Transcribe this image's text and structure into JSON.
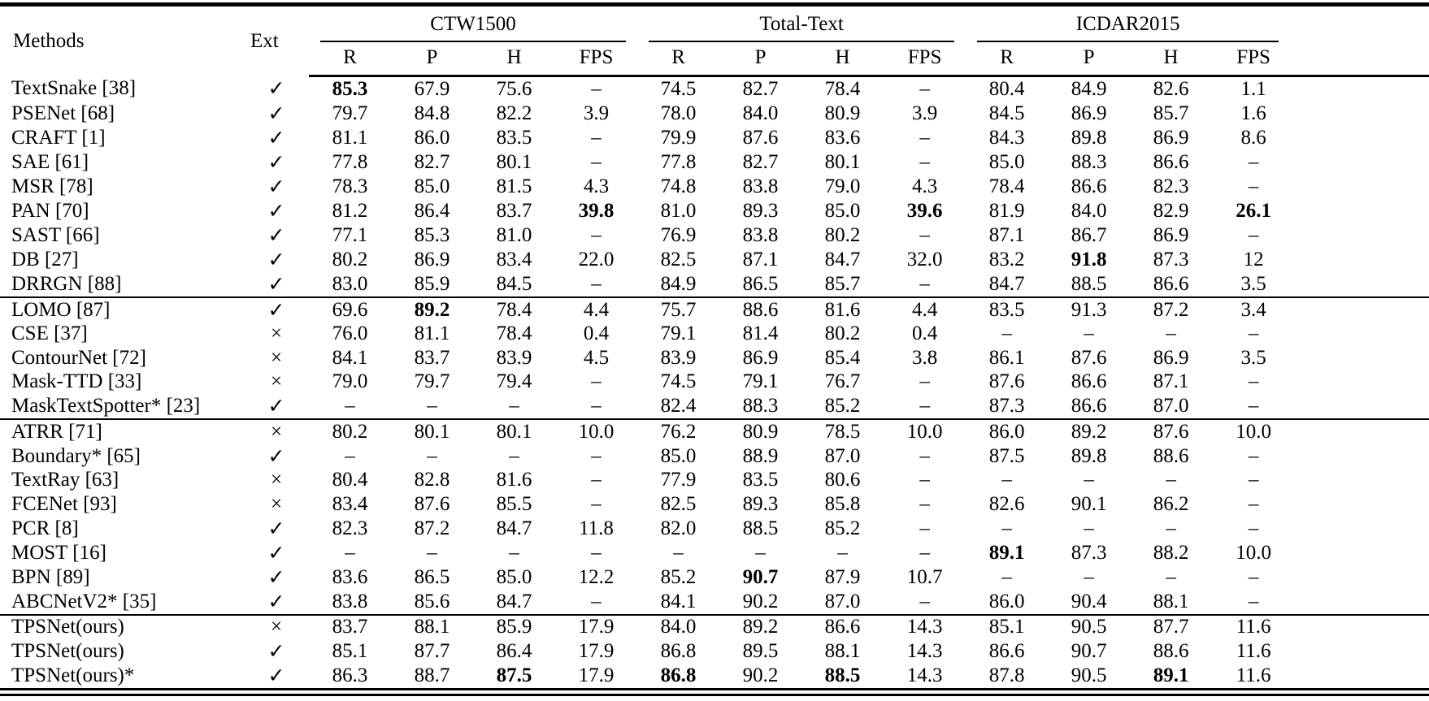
{
  "table": {
    "col_methods": "Methods",
    "col_ext": "Ext",
    "groups": [
      {
        "label": "CTW1500",
        "subcols": [
          "R",
          "P",
          "H",
          "FPS"
        ]
      },
      {
        "label": "Total-Text",
        "subcols": [
          "R",
          "P",
          "H",
          "FPS"
        ]
      },
      {
        "label": "ICDAR2015",
        "subcols": [
          "R",
          "P",
          "H",
          "FPS"
        ]
      }
    ],
    "ext_symbols": {
      "check": "✓",
      "cross": "×"
    },
    "colors": {
      "text": "#000000",
      "background": "#ffffff",
      "rule": "#000000"
    },
    "sections": [
      {
        "rows": [
          {
            "method": "TextSnake [38]",
            "ext": "check",
            "values": [
              "85.3",
              "67.9",
              "75.6",
              "–",
              "74.5",
              "82.7",
              "78.4",
              "–",
              "80.4",
              "84.9",
              "82.6",
              "1.1"
            ],
            "bold": [
              0
            ]
          },
          {
            "method": "PSENet [68]",
            "ext": "check",
            "values": [
              "79.7",
              "84.8",
              "82.2",
              "3.9",
              "78.0",
              "84.0",
              "80.9",
              "3.9",
              "84.5",
              "86.9",
              "85.7",
              "1.6"
            ],
            "bold": []
          },
          {
            "method": "CRAFT [1]",
            "ext": "check",
            "values": [
              "81.1",
              "86.0",
              "83.5",
              "–",
              "79.9",
              "87.6",
              "83.6",
              "–",
              "84.3",
              "89.8",
              "86.9",
              "8.6"
            ],
            "bold": []
          },
          {
            "method": "SAE [61]",
            "ext": "check",
            "values": [
              "77.8",
              "82.7",
              "80.1",
              "–",
              "77.8",
              "82.7",
              "80.1",
              "–",
              "85.0",
              "88.3",
              "86.6",
              "–"
            ],
            "bold": []
          },
          {
            "method": "MSR [78]",
            "ext": "check",
            "values": [
              "78.3",
              "85.0",
              "81.5",
              "4.3",
              "74.8",
              "83.8",
              "79.0",
              "4.3",
              "78.4",
              "86.6",
              "82.3",
              "–"
            ],
            "bold": []
          },
          {
            "method": "PAN [70]",
            "ext": "check",
            "values": [
              "81.2",
              "86.4",
              "83.7",
              "39.8",
              "81.0",
              "89.3",
              "85.0",
              "39.6",
              "81.9",
              "84.0",
              "82.9",
              "26.1"
            ],
            "bold": [
              3,
              7,
              11
            ]
          },
          {
            "method": "SAST [66]",
            "ext": "check",
            "values": [
              "77.1",
              "85.3",
              "81.0",
              "–",
              "76.9",
              "83.8",
              "80.2",
              "–",
              "87.1",
              "86.7",
              "86.9",
              "–"
            ],
            "bold": []
          },
          {
            "method": "DB [27]",
            "ext": "check",
            "values": [
              "80.2",
              "86.9",
              "83.4",
              "22.0",
              "82.5",
              "87.1",
              "84.7",
              "32.0",
              "83.2",
              "91.8",
              "87.3",
              "12"
            ],
            "bold": [
              9
            ]
          },
          {
            "method": "DRRGN [88]",
            "ext": "check",
            "values": [
              "83.0",
              "85.9",
              "84.5",
              "–",
              "84.9",
              "86.5",
              "85.7",
              "–",
              "84.7",
              "88.5",
              "86.6",
              "3.5"
            ],
            "bold": []
          }
        ]
      },
      {
        "rows": [
          {
            "method": "LOMO [87]",
            "ext": "check",
            "values": [
              "69.6",
              "89.2",
              "78.4",
              "4.4",
              "75.7",
              "88.6",
              "81.6",
              "4.4",
              "83.5",
              "91.3",
              "87.2",
              "3.4"
            ],
            "bold": [
              1
            ]
          },
          {
            "method": "CSE [37]",
            "ext": "cross",
            "values": [
              "76.0",
              "81.1",
              "78.4",
              "0.4",
              "79.1",
              "81.4",
              "80.2",
              "0.4",
              "–",
              "–",
              "–",
              "–"
            ],
            "bold": []
          },
          {
            "method": "ContourNet [72]",
            "ext": "cross",
            "values": [
              "84.1",
              "83.7",
              "83.9",
              "4.5",
              "83.9",
              "86.9",
              "85.4",
              "3.8",
              "86.1",
              "87.6",
              "86.9",
              "3.5"
            ],
            "bold": []
          },
          {
            "method": "Mask-TTD [33]",
            "ext": "cross",
            "values": [
              "79.0",
              "79.7",
              "79.4",
              "–",
              "74.5",
              "79.1",
              "76.7",
              "–",
              "87.6",
              "86.6",
              "87.1",
              "–"
            ],
            "bold": []
          },
          {
            "method": "MaskTextSpotter* [23]",
            "ext": "check",
            "values": [
              "–",
              "–",
              "–",
              "–",
              "82.4",
              "88.3",
              "85.2",
              "–",
              "87.3",
              "86.6",
              "87.0",
              "–"
            ],
            "bold": []
          }
        ]
      },
      {
        "rows": [
          {
            "method": "ATRR [71]",
            "ext": "cross",
            "values": [
              "80.2",
              "80.1",
              "80.1",
              "10.0",
              "76.2",
              "80.9",
              "78.5",
              "10.0",
              "86.0",
              "89.2",
              "87.6",
              "10.0"
            ],
            "bold": []
          },
          {
            "method": "Boundary* [65]",
            "ext": "check",
            "values": [
              "–",
              "–",
              "–",
              "–",
              "85.0",
              "88.9",
              "87.0",
              "–",
              "87.5",
              "89.8",
              "88.6",
              "–"
            ],
            "bold": []
          },
          {
            "method": "TextRay [63]",
            "ext": "cross",
            "values": [
              "80.4",
              "82.8",
              "81.6",
              "–",
              "77.9",
              "83.5",
              "80.6",
              "–",
              "–",
              "–",
              "–",
              "–"
            ],
            "bold": []
          },
          {
            "method": "FCENet [93]",
            "ext": "cross",
            "values": [
              "83.4",
              "87.6",
              "85.5",
              "–",
              "82.5",
              "89.3",
              "85.8",
              "–",
              "82.6",
              "90.1",
              "86.2",
              "–"
            ],
            "bold": []
          },
          {
            "method": "PCR [8]",
            "ext": "check",
            "values": [
              "82.3",
              "87.2",
              "84.7",
              "11.8",
              "82.0",
              "88.5",
              "85.2",
              "–",
              "–",
              "–",
              "–",
              "–"
            ],
            "bold": []
          },
          {
            "method": "MOST [16]",
            "ext": "check",
            "values": [
              "–",
              "–",
              "–",
              "–",
              "–",
              "–",
              "–",
              "–",
              "89.1",
              "87.3",
              "88.2",
              "10.0"
            ],
            "bold": [
              8
            ]
          },
          {
            "method": "BPN [89]",
            "ext": "check",
            "values": [
              "83.6",
              "86.5",
              "85.0",
              "12.2",
              "85.2",
              "90.7",
              "87.9",
              "10.7",
              "–",
              "–",
              "–",
              "–"
            ],
            "bold": [
              5
            ]
          },
          {
            "method": "ABCNetV2* [35]",
            "ext": "check",
            "values": [
              "83.8",
              "85.6",
              "84.7",
              "–",
              "84.1",
              "90.2",
              "87.0",
              "–",
              "86.0",
              "90.4",
              "88.1",
              "–"
            ],
            "bold": []
          }
        ]
      },
      {
        "rows": [
          {
            "method": "TPSNet(ours)",
            "ext": "cross",
            "values": [
              "83.7",
              "88.1",
              "85.9",
              "17.9",
              "84.0",
              "89.2",
              "86.6",
              "14.3",
              "85.1",
              "90.5",
              "87.7",
              "11.6"
            ],
            "bold": []
          },
          {
            "method": "TPSNet(ours)",
            "ext": "check",
            "values": [
              "85.1",
              "87.7",
              "86.4",
              "17.9",
              "86.8",
              "89.5",
              "88.1",
              "14.3",
              "86.6",
              "90.7",
              "88.6",
              "11.6"
            ],
            "bold": []
          },
          {
            "method": "TPSNet(ours)*",
            "ext": "check",
            "values": [
              "86.3",
              "88.7",
              "87.5",
              "17.9",
              "86.8",
              "90.2",
              "88.5",
              "14.3",
              "87.8",
              "90.5",
              "89.1",
              "11.6"
            ],
            "bold": [
              2,
              4,
              6,
              10
            ]
          }
        ]
      }
    ]
  }
}
